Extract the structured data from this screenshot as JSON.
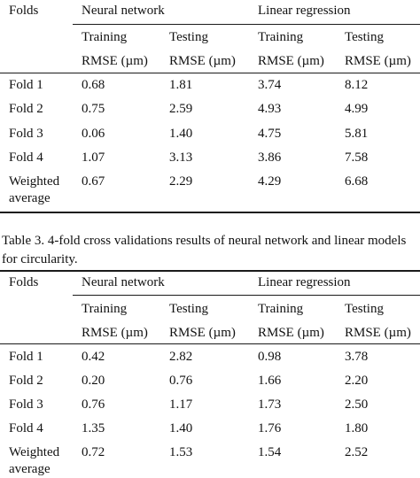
{
  "table2": {
    "folds_header": "Folds",
    "groups": [
      "Neural network",
      "Linear regression"
    ],
    "sub_headers": [
      "Training",
      "Testing",
      "Training",
      "Testing"
    ],
    "sub_units": [
      "RMSE (µm)",
      "RMSE (µm)",
      "RMSE (µm)",
      "RMSE (µm)"
    ],
    "rows": [
      {
        "label": [
          "Fold 1"
        ],
        "values": [
          "0.68",
          "1.81",
          "3.74",
          "8.12"
        ]
      },
      {
        "label": [
          "Fold 2"
        ],
        "values": [
          "0.75",
          "2.59",
          "4.93",
          "4.99"
        ]
      },
      {
        "label": [
          "Fold 3"
        ],
        "values": [
          "0.06",
          "1.40",
          "4.75",
          "5.81"
        ]
      },
      {
        "label": [
          "Fold 4"
        ],
        "values": [
          "1.07",
          "3.13",
          "3.86",
          "7.58"
        ]
      },
      {
        "label": [
          "Weighted",
          "average"
        ],
        "values": [
          "0.67",
          "2.29",
          "4.29",
          "6.68"
        ]
      }
    ]
  },
  "caption": "Table 3. 4-fold cross validations results of neural network and linear models for circularity.",
  "table3": {
    "folds_header": "Folds",
    "groups": [
      "Neural network",
      "Linear regression"
    ],
    "sub_headers": [
      "Training",
      "Testing",
      "Training",
      "Testing"
    ],
    "sub_units": [
      "RMSE (µm)",
      "RMSE (µm)",
      "RMSE (µm)",
      "RMSE (µm)"
    ],
    "rows": [
      {
        "label": [
          "Fold 1"
        ],
        "values": [
          "0.42",
          "2.82",
          "0.98",
          "3.78"
        ]
      },
      {
        "label": [
          "Fold 2"
        ],
        "values": [
          "0.20",
          "0.76",
          "1.66",
          "2.20"
        ]
      },
      {
        "label": [
          "Fold 3"
        ],
        "values": [
          "0.76",
          "1.17",
          "1.73",
          "2.50"
        ]
      },
      {
        "label": [
          "Fold 4"
        ],
        "values": [
          "1.35",
          "1.40",
          "1.76",
          "1.80"
        ]
      },
      {
        "label": [
          "Weighted",
          "average"
        ],
        "values": [
          "0.72",
          "1.53",
          "1.54",
          "2.52"
        ]
      }
    ]
  }
}
